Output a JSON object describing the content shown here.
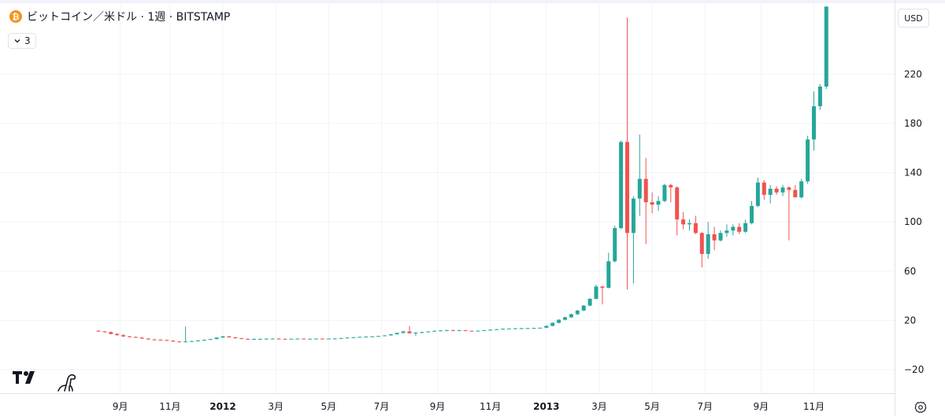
{
  "header": {
    "title": "ビットコイン／米ドル · 1週 · BITSTAMP",
    "coin_icon": "bitcoin-icon",
    "coin_glyph": "₿",
    "coin_color": "#f7931a"
  },
  "indicator_toggle": {
    "count": "3",
    "icon": "chevron-down-icon"
  },
  "currency_button": {
    "label": "USD"
  },
  "colors": {
    "up": "#26a69a",
    "down": "#ef5350",
    "grid": "#f0f3fa",
    "axis_text": "#131722"
  },
  "chart_data": {
    "type": "candlestick",
    "symbol": "ビットコイン／米ドル",
    "interval": "1週",
    "exchange": "BITSTAMP",
    "y_ticks": [
      -20,
      20,
      60,
      100,
      140,
      180,
      220
    ],
    "ylim": [
      -34,
      278
    ],
    "x_ticks": [
      {
        "label": "9月",
        "t": 3.5,
        "bold": false
      },
      {
        "label": "11月",
        "t": 11.5,
        "bold": false
      },
      {
        "label": "2012",
        "t": 20.0,
        "bold": true
      },
      {
        "label": "3月",
        "t": 28.5,
        "bold": false
      },
      {
        "label": "5月",
        "t": 37.0,
        "bold": false
      },
      {
        "label": "7月",
        "t": 45.5,
        "bold": false
      },
      {
        "label": "9月",
        "t": 54.5,
        "bold": false
      },
      {
        "label": "11月",
        "t": 63.0,
        "bold": false
      },
      {
        "label": "2013",
        "t": 72.0,
        "bold": true
      },
      {
        "label": "3月",
        "t": 80.5,
        "bold": false
      },
      {
        "label": "5月",
        "t": 89.0,
        "bold": false
      },
      {
        "label": "7月",
        "t": 97.5,
        "bold": false
      },
      {
        "label": "9月",
        "t": 106.5,
        "bold": false
      },
      {
        "label": "11月",
        "t": 115.0,
        "bold": false
      }
    ],
    "candles": [
      [
        11.5,
        12.2,
        11.0,
        11.0
      ],
      [
        11.0,
        11.3,
        10.0,
        10.5
      ],
      [
        10.5,
        11.0,
        8.5,
        9.0
      ],
      [
        9.0,
        9.5,
        7.5,
        8.0
      ],
      [
        8.0,
        8.8,
        6.5,
        7.0
      ],
      [
        7.0,
        7.5,
        6.0,
        6.5
      ],
      [
        6.5,
        7.0,
        5.8,
        6.0
      ],
      [
        6.0,
        6.5,
        5.0,
        5.2
      ],
      [
        5.2,
        5.5,
        4.2,
        4.5
      ],
      [
        4.5,
        5.0,
        4.0,
        4.3
      ],
      [
        4.3,
        4.6,
        3.8,
        4.0
      ],
      [
        4.0,
        4.5,
        3.3,
        3.5
      ],
      [
        3.5,
        4.0,
        2.5,
        2.8
      ],
      [
        2.8,
        3.2,
        2.2,
        2.5
      ],
      [
        2.5,
        15.0,
        2.3,
        2.8
      ],
      [
        2.8,
        3.5,
        2.5,
        3.2
      ],
      [
        3.2,
        4.0,
        3.0,
        3.6
      ],
      [
        3.6,
        4.5,
        3.4,
        4.2
      ],
      [
        4.2,
        5.0,
        4.0,
        4.8
      ],
      [
        4.8,
        6.2,
        4.6,
        6.0
      ],
      [
        6.0,
        7.5,
        5.8,
        7.0
      ],
      [
        7.0,
        7.3,
        6.0,
        6.2
      ],
      [
        6.2,
        6.5,
        5.2,
        5.5
      ],
      [
        5.5,
        5.8,
        4.8,
        5.0
      ],
      [
        5.0,
        5.3,
        4.4,
        4.7
      ],
      [
        4.7,
        5.2,
        4.5,
        4.9
      ],
      [
        4.9,
        5.3,
        4.6,
        5.0
      ],
      [
        5.0,
        5.4,
        4.7,
        5.1
      ],
      [
        5.1,
        5.5,
        4.8,
        5.2
      ],
      [
        5.2,
        5.6,
        4.8,
        5.0
      ],
      [
        5.0,
        5.3,
        4.7,
        4.9
      ],
      [
        4.9,
        5.2,
        4.7,
        5.1
      ],
      [
        5.1,
        5.4,
        4.9,
        5.2
      ],
      [
        5.2,
        5.4,
        4.9,
        5.0
      ],
      [
        5.0,
        5.2,
        4.8,
        5.1
      ],
      [
        5.1,
        5.3,
        4.9,
        5.2
      ],
      [
        5.2,
        5.4,
        5.0,
        5.1
      ],
      [
        5.1,
        5.3,
        4.9,
        5.2
      ],
      [
        5.2,
        5.5,
        5.0,
        5.3
      ],
      [
        5.3,
        5.8,
        5.2,
        5.6
      ],
      [
        5.6,
        6.2,
        5.5,
        6.0
      ],
      [
        6.0,
        6.5,
        5.8,
        6.3
      ],
      [
        6.3,
        6.8,
        6.1,
        6.6
      ],
      [
        6.6,
        7.0,
        6.4,
        6.8
      ],
      [
        6.8,
        7.2,
        6.6,
        7.0
      ],
      [
        7.0,
        7.5,
        6.8,
        7.3
      ],
      [
        7.3,
        8.0,
        7.1,
        7.8
      ],
      [
        7.8,
        9.0,
        7.6,
        8.7
      ],
      [
        8.7,
        10.0,
        8.5,
        9.8
      ],
      [
        9.8,
        11.5,
        9.5,
        11.0
      ],
      [
        11.0,
        15.5,
        10.5,
        9.5
      ],
      [
        9.5,
        10.5,
        7.5,
        10.0
      ],
      [
        10.0,
        10.8,
        9.5,
        10.5
      ],
      [
        10.5,
        11.2,
        10.2,
        11.0
      ],
      [
        11.0,
        11.8,
        10.8,
        11.5
      ],
      [
        11.5,
        12.0,
        11.2,
        11.8
      ],
      [
        11.8,
        12.3,
        11.5,
        12.0
      ],
      [
        12.0,
        12.4,
        11.6,
        11.8
      ],
      [
        11.8,
        12.2,
        11.5,
        12.0
      ],
      [
        12.0,
        12.2,
        11.2,
        11.5
      ],
      [
        11.5,
        11.8,
        11.0,
        11.2
      ],
      [
        11.2,
        11.8,
        11.0,
        11.6
      ],
      [
        11.6,
        12.2,
        11.4,
        12.0
      ],
      [
        12.0,
        12.6,
        11.8,
        12.4
      ],
      [
        12.4,
        13.0,
        12.2,
        12.8
      ],
      [
        12.8,
        13.4,
        12.6,
        13.2
      ],
      [
        13.2,
        13.6,
        13.0,
        13.4
      ],
      [
        13.4,
        13.8,
        13.2,
        13.5
      ],
      [
        13.5,
        13.9,
        13.3,
        13.6
      ],
      [
        13.6,
        14.0,
        13.4,
        13.7
      ],
      [
        13.7,
        14.1,
        13.5,
        13.8
      ],
      [
        13.8,
        14.2,
        13.6,
        14.0
      ],
      [
        14.0,
        16.0,
        13.8,
        15.5
      ],
      [
        15.5,
        18.5,
        15.2,
        18.0
      ],
      [
        18.0,
        21.0,
        17.5,
        20.5
      ],
      [
        20.5,
        23.0,
        20.0,
        22.5
      ],
      [
        22.5,
        25.5,
        22.0,
        25.0
      ],
      [
        25.0,
        28.5,
        24.5,
        28.0
      ],
      [
        28.0,
        32.5,
        27.5,
        32.0
      ],
      [
        32.0,
        38.0,
        31.5,
        37.5
      ],
      [
        37.5,
        49.0,
        37.0,
        47.5
      ],
      [
        47.5,
        48.0,
        33.0,
        46.5
      ],
      [
        46.5,
        75.0,
        46.0,
        68.0
      ],
      [
        68.0,
        97.0,
        67.0,
        95.0
      ],
      [
        95.0,
        166.0,
        94.0,
        165.0
      ],
      [
        165.0,
        266.0,
        45.0,
        91.0
      ],
      [
        91.0,
        121.0,
        50.0,
        119.0
      ],
      [
        119.0,
        171.0,
        105.0,
        135.0
      ],
      [
        135.0,
        152.0,
        82.0,
        116.0
      ],
      [
        116.0,
        124.0,
        107.0,
        114.0
      ],
      [
        114.0,
        121.0,
        109.0,
        117.0
      ],
      [
        117.0,
        131.0,
        116.0,
        130.0
      ],
      [
        130.0,
        131.0,
        116.0,
        128.0
      ],
      [
        128.0,
        129.0,
        89.0,
        102.0
      ],
      [
        102.0,
        108.0,
        94.0,
        98.0
      ],
      [
        98.0,
        102.0,
        93.0,
        99.0
      ],
      [
        99.0,
        105.0,
        90.0,
        91.0
      ],
      [
        91.0,
        92.0,
        63.0,
        74.0
      ],
      [
        74.0,
        100.0,
        70.0,
        90.0
      ],
      [
        90.0,
        96.0,
        77.0,
        85.0
      ],
      [
        85.0,
        93.0,
        84.0,
        91.0
      ],
      [
        91.0,
        98.0,
        88.0,
        93.0
      ],
      [
        93.0,
        98.0,
        89.0,
        96.0
      ],
      [
        96.0,
        99.0,
        90.0,
        92.0
      ],
      [
        92.0,
        102.0,
        91.0,
        99.0
      ],
      [
        99.0,
        117.0,
        98.0,
        113.0
      ],
      [
        113.0,
        136.0,
        112.0,
        132.0
      ],
      [
        132.0,
        134.0,
        118.0,
        122.0
      ],
      [
        122.0,
        130.0,
        115.0,
        127.0
      ],
      [
        127.0,
        129.0,
        122.0,
        124.0
      ],
      [
        124.0,
        130.0,
        121.0,
        128.0
      ],
      [
        128.0,
        129.0,
        85.0,
        126.0
      ],
      [
        126.0,
        130.0,
        122.0,
        120.0
      ],
      [
        120.0,
        135.0,
        119.0,
        133.0
      ],
      [
        133.0,
        170.0,
        131.0,
        167.0
      ],
      [
        167.0,
        206.0,
        158.0,
        194.0
      ],
      [
        194.0,
        212.0,
        191.0,
        210.0
      ],
      [
        210.0,
        275.0,
        208.0,
        275.0
      ]
    ]
  }
}
